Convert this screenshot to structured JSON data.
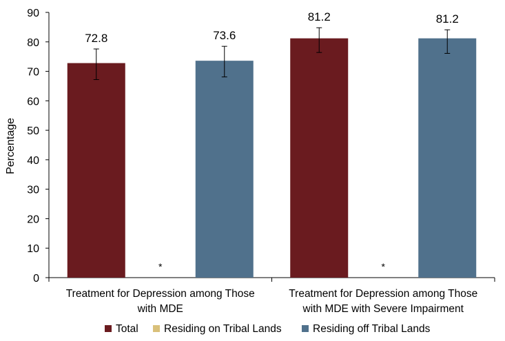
{
  "chart_data": {
    "type": "bar",
    "title": "",
    "xlabel": "",
    "ylabel": "Percentage",
    "ylim": [
      0,
      90
    ],
    "yticks": [
      0,
      10,
      20,
      30,
      40,
      50,
      60,
      70,
      80,
      90
    ],
    "grid": false,
    "legend_position": "bottom",
    "categories": [
      [
        "Treatment for Depression among Those",
        "with MDE"
      ],
      [
        "Treatment for Depression among Those",
        "with MDE with Severe Impairment"
      ]
    ],
    "series": [
      {
        "name": "Total",
        "color": "#6a1b1f",
        "values": [
          72.8,
          81.2
        ],
        "labels": [
          "72.8",
          "81.2"
        ],
        "ci_low": [
          67.2,
          76.4
        ],
        "ci_high": [
          77.6,
          84.8
        ]
      },
      {
        "name": "Residing on Tribal Lands",
        "color": "#d9c07a",
        "values": [
          null,
          null
        ],
        "labels": [
          "",
          ""
        ],
        "suppressed_marker": "*"
      },
      {
        "name": "Residing off Tribal Lands",
        "color": "#50718c",
        "values": [
          73.6,
          81.2
        ],
        "labels": [
          "73.6",
          "81.2"
        ],
        "ci_low": [
          68.1,
          76.1
        ],
        "ci_high": [
          78.5,
          84.1
        ]
      }
    ]
  }
}
